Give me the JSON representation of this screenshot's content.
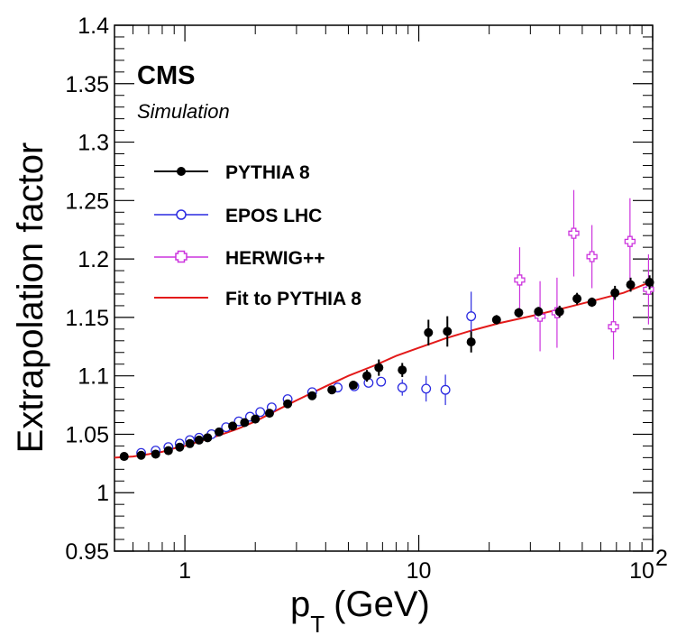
{
  "chart_data": {
    "type": "scatter",
    "xscale": "log",
    "xlim": [
      0.5,
      100
    ],
    "ylim": [
      0.95,
      1.4
    ],
    "xlabel": "p",
    "xlabel_sub": "T",
    "xlabel_unit": "(GeV)",
    "ylabel": "Extrapolation factor",
    "x_ticks": [
      "1",
      "10",
      "10"
    ],
    "x_tick_exp": "2",
    "y_ticks": [
      "0.95",
      "1",
      "1.05",
      "1.1",
      "1.15",
      "1.2",
      "1.25",
      "1.3",
      "1.35",
      "1.4"
    ],
    "y_tick_values": [
      0.95,
      1.0,
      1.05,
      1.1,
      1.15,
      1.2,
      1.25,
      1.3,
      1.35,
      1.4
    ],
    "annotations": {
      "experiment": "CMS",
      "status": "Simulation"
    },
    "legend_position": "upper-left",
    "grid": false,
    "series": [
      {
        "name": "PYTHIA 8",
        "marker": "filled-circle",
        "color": "#000000",
        "x": [
          0.55,
          0.65,
          0.75,
          0.85,
          0.95,
          1.05,
          1.15,
          1.25,
          1.4,
          1.6,
          1.8,
          2.0,
          2.3,
          2.75,
          3.5,
          4.25,
          5.25,
          6.0,
          6.75,
          8.5,
          11.0,
          13.25,
          16.75,
          21.5,
          26.75,
          32.5,
          40.0,
          47.5,
          55.0,
          69.0,
          80.5,
          97.0
        ],
        "y": [
          1.031,
          1.032,
          1.033,
          1.036,
          1.039,
          1.042,
          1.045,
          1.047,
          1.052,
          1.057,
          1.06,
          1.063,
          1.068,
          1.076,
          1.083,
          1.088,
          1.092,
          1.1,
          1.107,
          1.105,
          1.137,
          1.138,
          1.129,
          1.148,
          1.154,
          1.155,
          1.155,
          1.166,
          1.163,
          1.171,
          1.178,
          1.18
        ],
        "err": [
          0.001,
          0.001,
          0.001,
          0.001,
          0.001,
          0.001,
          0.001,
          0.001,
          0.001,
          0.001,
          0.001,
          0.001,
          0.001,
          0.002,
          0.002,
          0.002,
          0.003,
          0.005,
          0.007,
          0.006,
          0.011,
          0.013,
          0.009,
          0.004,
          0.004,
          0.004,
          0.005,
          0.005,
          0.004,
          0.006,
          0.006,
          0.006
        ]
      },
      {
        "name": "EPOS LHC",
        "marker": "open-circle",
        "color": "#2a2ae0",
        "x": [
          0.65,
          0.75,
          0.85,
          0.95,
          1.05,
          1.15,
          1.3,
          1.5,
          1.7,
          1.9,
          2.1,
          2.35,
          2.75,
          3.5,
          4.5,
          5.3,
          6.1,
          6.9,
          8.5,
          10.75,
          13.0,
          16.75
        ],
        "y": [
          1.034,
          1.036,
          1.039,
          1.042,
          1.045,
          1.047,
          1.05,
          1.056,
          1.061,
          1.065,
          1.069,
          1.073,
          1.08,
          1.086,
          1.09,
          1.091,
          1.094,
          1.095,
          1.09,
          1.089,
          1.088,
          1.151
        ],
        "err": [
          0.001,
          0.001,
          0.001,
          0.001,
          0.001,
          0.001,
          0.001,
          0.001,
          0.001,
          0.001,
          0.001,
          0.001,
          0.002,
          0.002,
          0.002,
          0.002,
          0.003,
          0.004,
          0.007,
          0.011,
          0.013,
          0.021
        ]
      },
      {
        "name": "HERWIG++",
        "marker": "open-cross",
        "color": "#cc33dd",
        "x": [
          27.0,
          33.0,
          39.0,
          46.0,
          55.0,
          68.0,
          80.0,
          96.0
        ],
        "y": [
          1.182,
          1.151,
          1.154,
          1.222,
          1.202,
          1.142,
          1.215,
          1.174
        ],
        "err": [
          0.028,
          0.03,
          0.03,
          0.037,
          0.027,
          0.028,
          0.037,
          0.03
        ]
      }
    ],
    "fit": {
      "name": "Fit to PYTHIA 8",
      "color": "#e31a1a",
      "x": [
        0.5,
        0.6,
        0.7,
        0.8,
        0.9,
        1.0,
        1.2,
        1.4,
        1.7,
        2.0,
        2.5,
        3.0,
        4.0,
        5.0,
        6.5,
        8.0,
        10.0,
        13.0,
        17.0,
        22.0,
        30.0,
        40.0,
        55.0,
        75.0,
        100.0
      ],
      "y": [
        1.03,
        1.031,
        1.033,
        1.035,
        1.038,
        1.04,
        1.045,
        1.049,
        1.055,
        1.061,
        1.071,
        1.079,
        1.091,
        1.1,
        1.109,
        1.117,
        1.124,
        1.132,
        1.139,
        1.145,
        1.151,
        1.157,
        1.164,
        1.171,
        1.181
      ]
    }
  }
}
